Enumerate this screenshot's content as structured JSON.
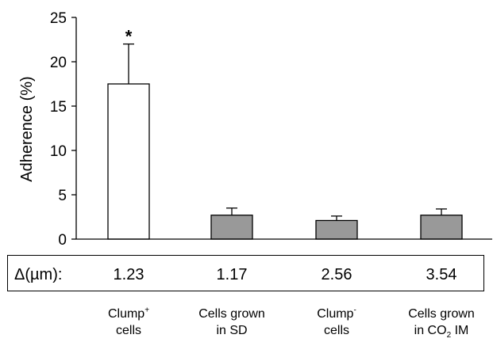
{
  "chart_data": {
    "type": "bar",
    "categories": [
      "Clump+ cells",
      "Cells grown in SD",
      "Clump- cells",
      "Cells grown in CO2 IM"
    ],
    "category_lines": [
      {
        "line1": "Clump",
        "sup": "+",
        "sub": "",
        "line2": "cells",
        "line2_sub": "",
        "line2_tail": ""
      },
      {
        "line1": "Cells grown",
        "sup": "",
        "sub": "",
        "line2": "in SD",
        "line2_sub": "",
        "line2_tail": ""
      },
      {
        "line1": "Clump",
        "sup": "-",
        "sub": "",
        "line2": "cells",
        "line2_sub": "",
        "line2_tail": ""
      },
      {
        "line1": "Cells grown",
        "sup": "",
        "sub": "",
        "line2": "in CO",
        "line2_sub": "2",
        "line2_tail": " IM"
      }
    ],
    "values": [
      17.5,
      2.7,
      2.1,
      2.7
    ],
    "errors": [
      4.5,
      0.8,
      0.5,
      0.7
    ],
    "bar_colors": [
      "#ffffff",
      "#999999",
      "#999999",
      "#999999"
    ],
    "annotations": [
      "*",
      "",
      "",
      ""
    ],
    "ylabel": "Adherence  (%)",
    "ylim": [
      0,
      25
    ],
    "yticks": [
      0,
      5,
      10,
      15,
      20,
      25
    ],
    "grid": false,
    "delta_row": {
      "label": "Δ(µm):",
      "values": [
        "1.23",
        "1.17",
        "2.56",
        "3.54"
      ]
    }
  }
}
